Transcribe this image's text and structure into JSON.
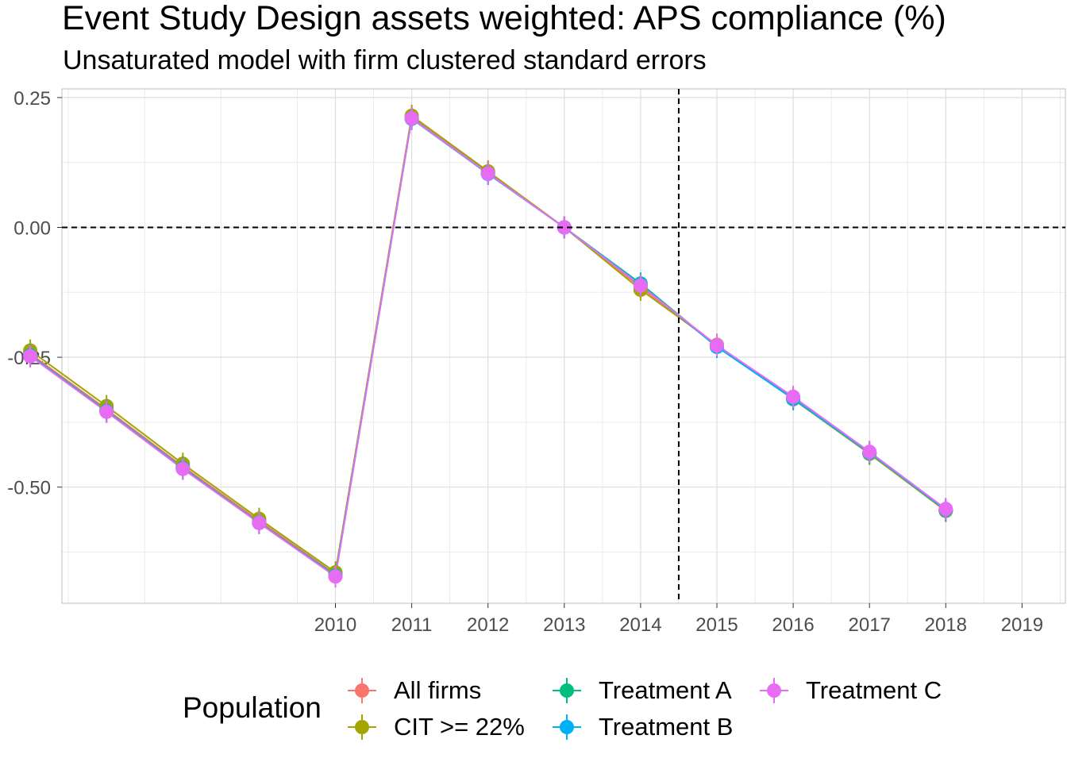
{
  "chart_data": {
    "type": "line",
    "title": "Event Study Design assets weighted: APS compliance (%)",
    "subtitle": "Unsaturated model with firm clustered standard errors",
    "xlabel": "",
    "ylabel": "",
    "x": [
      2006,
      2007,
      2008,
      2009,
      2010,
      2011,
      2012,
      2013,
      2014,
      2015,
      2016,
      2017,
      2018,
      2019
    ],
    "x_tick_labels": [
      "2010",
      "2011",
      "2012",
      "2013",
      "2014",
      "2015",
      "2016",
      "2017",
      "2018",
      "2019"
    ],
    "x_ticks": [
      2010,
      2011,
      2012,
      2013,
      2014,
      2015,
      2016,
      2017,
      2018,
      2019
    ],
    "y_tick_labels": [
      "0.25",
      "0.00",
      "-0.25",
      "-0.50"
    ],
    "y_ticks": [
      0.25,
      0.0,
      -0.25,
      -0.5
    ],
    "xlim": [
      2005.5,
      2019.6
    ],
    "ylim": [
      -0.72,
      0.265
    ],
    "reference_lines": {
      "hline_y": 0.0,
      "vline_x": 2014.5,
      "style": "dashed"
    },
    "grid": true,
    "legend": {
      "title": "Population",
      "position": "bottom"
    },
    "series": [
      {
        "name": "All firms",
        "color": "#F8766D",
        "values": [
          -0.243,
          -0.35,
          -0.46,
          -0.565,
          -0.668,
          0.212,
          0.106,
          0.0,
          -0.115,
          -0.228,
          -0.33,
          -0.435,
          -0.545
        ],
        "x": [
          2006,
          2007,
          2008,
          2009,
          2010,
          2011,
          2012,
          2013,
          2014,
          2015,
          2016,
          2017,
          2018
        ]
      },
      {
        "name": "CIT >= 22%",
        "color": "#A3A500",
        "values": [
          -0.237,
          -0.344,
          -0.455,
          -0.561,
          -0.664,
          0.215,
          0.108,
          0.0,
          -0.12,
          -0.226,
          -0.331,
          -0.436,
          -0.546
        ],
        "x": [
          2006,
          2007,
          2008,
          2009,
          2010,
          2011,
          2012,
          2013,
          2014,
          2015,
          2016,
          2017,
          2018
        ]
      },
      {
        "name": "Treatment A",
        "color": "#00BF7D",
        "values": [
          -0.246,
          -0.353,
          -0.463,
          -0.568,
          -0.67,
          0.21,
          0.104,
          0.0,
          -0.108,
          -0.229,
          -0.329,
          -0.434,
          -0.544
        ],
        "x": [
          2006,
          2007,
          2008,
          2009,
          2010,
          2011,
          2012,
          2013,
          2014,
          2015,
          2016,
          2017,
          2018
        ]
      },
      {
        "name": "Treatment B",
        "color": "#00B0F6",
        "values": [
          -0.247,
          -0.354,
          -0.464,
          -0.569,
          -0.671,
          0.209,
          0.103,
          0.0,
          -0.11,
          -0.23,
          -0.33,
          -0.434,
          -0.544
        ],
        "x": [
          2006,
          2007,
          2008,
          2009,
          2010,
          2011,
          2012,
          2013,
          2014,
          2015,
          2016,
          2017,
          2018
        ]
      },
      {
        "name": "Treatment C",
        "color": "#E76BF3",
        "values": [
          -0.248,
          -0.355,
          -0.465,
          -0.569,
          -0.672,
          0.21,
          0.104,
          0.0,
          -0.112,
          -0.227,
          -0.326,
          -0.432,
          -0.542
        ],
        "x": [
          2006,
          2007,
          2008,
          2009,
          2010,
          2011,
          2012,
          2013,
          2014,
          2015,
          2016,
          2017,
          2018
        ]
      }
    ]
  }
}
